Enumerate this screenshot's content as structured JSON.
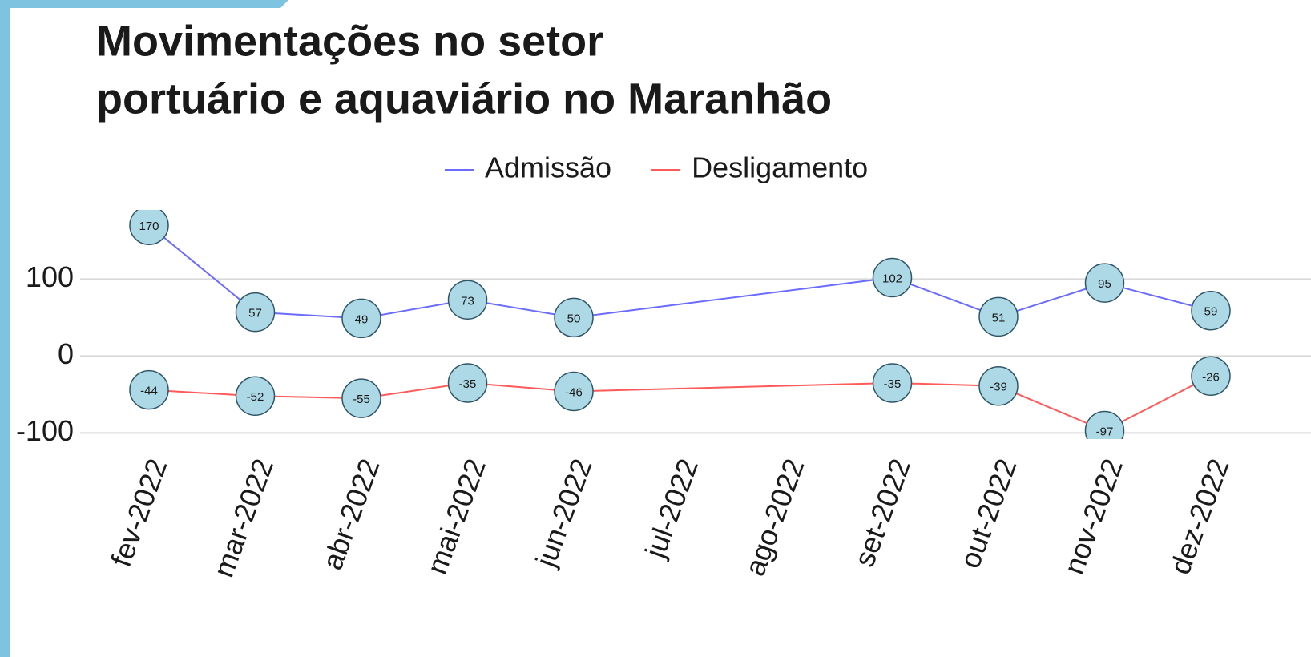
{
  "chart_data": {
    "type": "line",
    "title": [
      "Movimentações no setor",
      "portuário e aquaviário no Maranhão"
    ],
    "xticks": [
      "fev-2022",
      "mar-2022",
      "abr-2022",
      "mai-2022",
      "jun-2022",
      "jul-2022",
      "ago-2022",
      "set-2022",
      "out-2022",
      "nov-2022",
      "dez-2022"
    ],
    "x": [
      "fev-2022",
      "mar-2022",
      "abr-2022",
      "mai-2022",
      "jun-2022",
      "set-2022",
      "out-2022",
      "nov-2022",
      "dez-2022"
    ],
    "series": [
      {
        "name": "Admissão",
        "color": "#6b6bff",
        "values": [
          170,
          57,
          49,
          73,
          50,
          102,
          51,
          95,
          59
        ]
      },
      {
        "name": "Desligamento",
        "color": "#ff5a5a",
        "values": [
          -44,
          -52,
          -55,
          -35,
          -46,
          -35,
          -39,
          -97,
          -26
        ]
      }
    ],
    "ylim": [
      -108,
      190
    ],
    "yticks": [
      -100,
      0,
      100
    ],
    "grid": true,
    "legend": "top",
    "marker_color": "#add8e6"
  }
}
